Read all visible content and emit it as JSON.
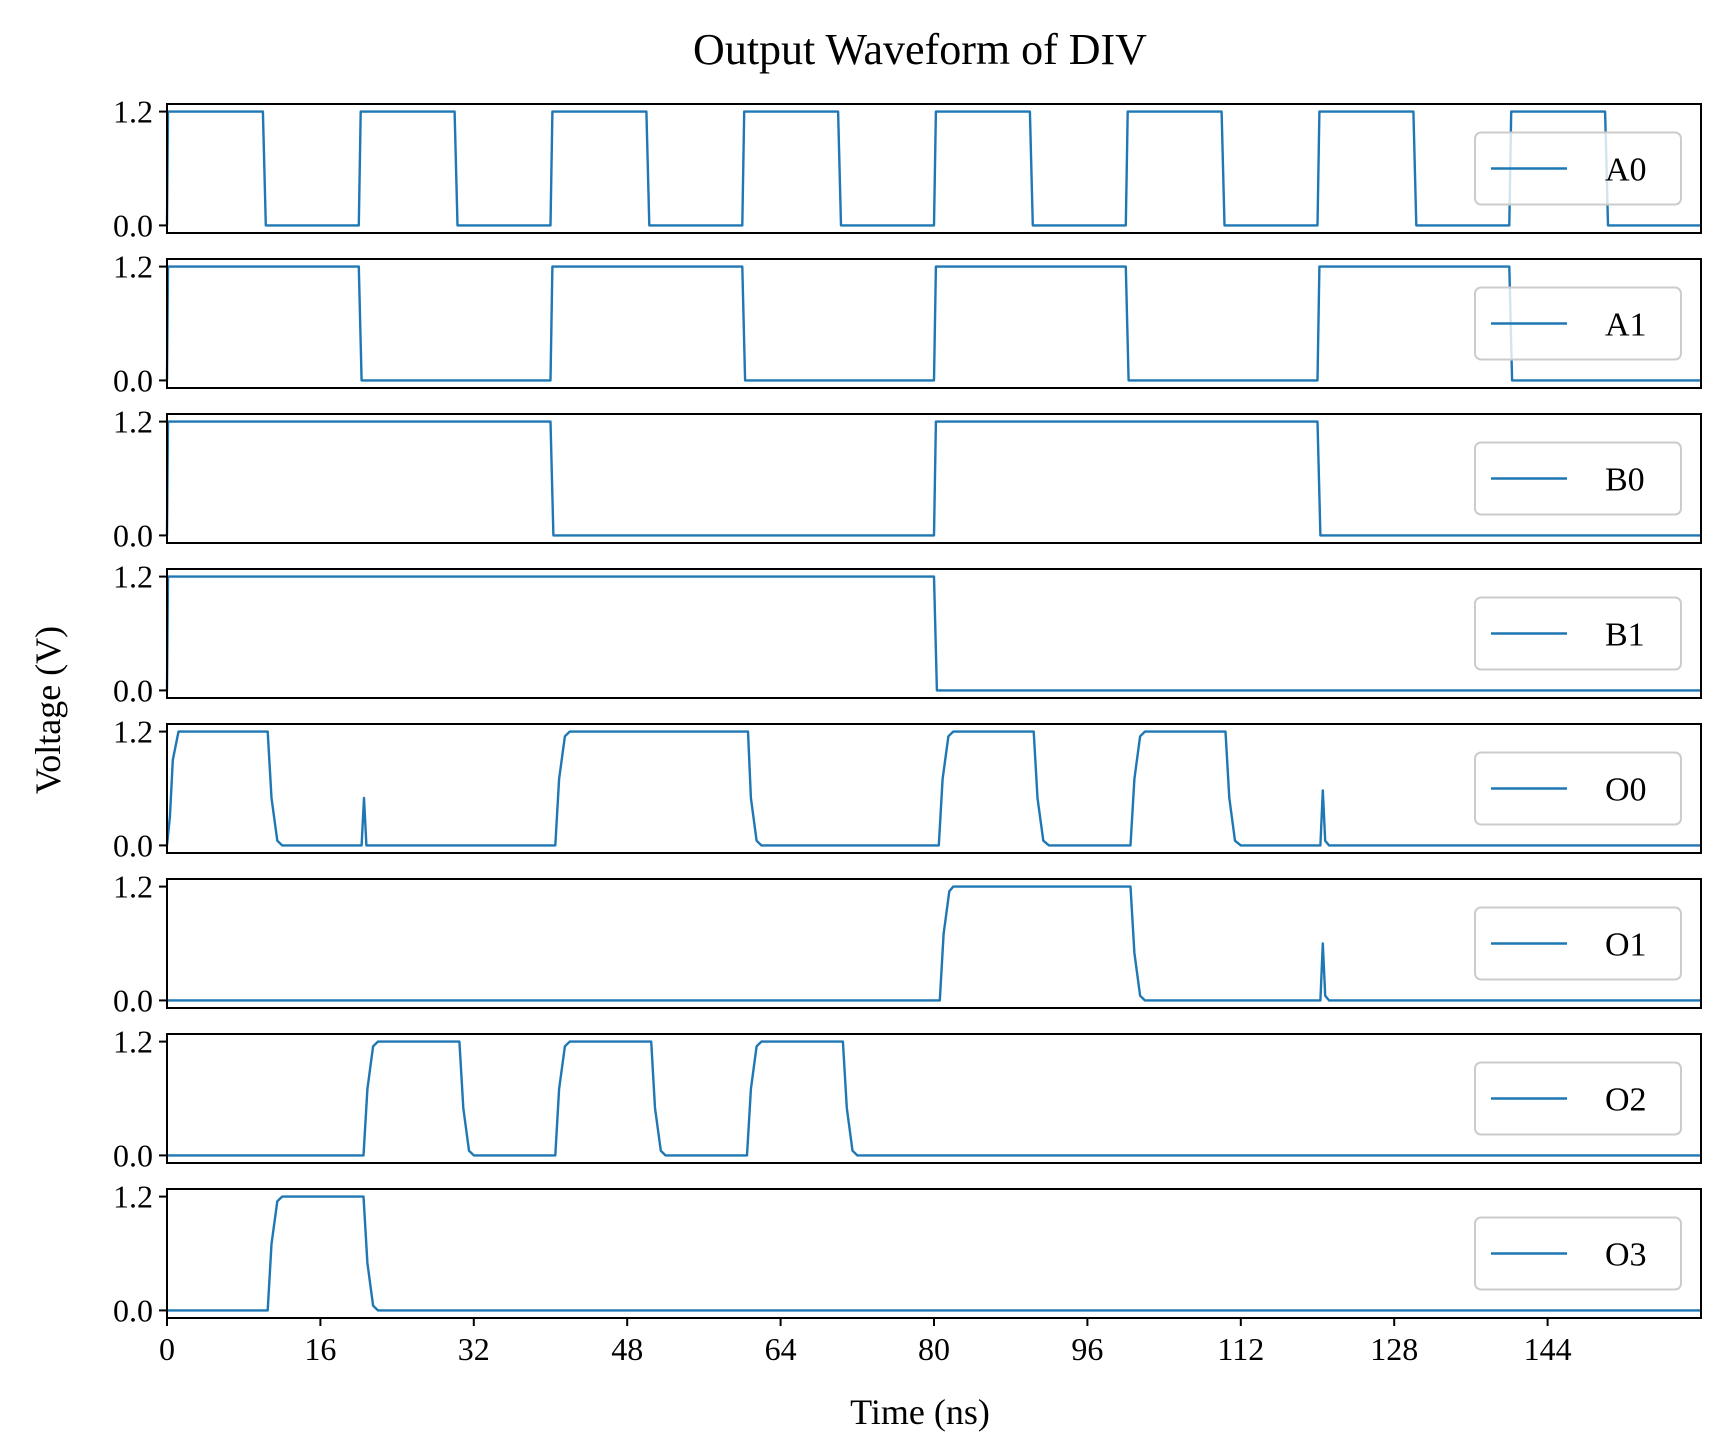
{
  "chart_data": {
    "type": "line",
    "title": "Output Waveform of DIV",
    "xlabel": "Time (ns)",
    "ylabel": "Voltage (V)",
    "xlim": [
      0,
      160
    ],
    "ylim": [
      -0.08,
      1.28
    ],
    "x_ticks": [
      "0",
      "16",
      "32",
      "48",
      "64",
      "80",
      "96",
      "112",
      "128",
      "144"
    ],
    "y_ticks": [
      "1.2",
      "0.0"
    ],
    "grid": false,
    "legend_position": "center-right",
    "line_color": "#1f77b4",
    "series": [
      {
        "name": "A0",
        "points": [
          [
            0,
            0
          ],
          [
            0.1,
            1.2
          ],
          [
            10,
            1.2
          ],
          [
            10.3,
            0
          ],
          [
            20,
            0
          ],
          [
            20.2,
            1.2
          ],
          [
            30,
            1.2
          ],
          [
            30.3,
            0
          ],
          [
            40,
            0
          ],
          [
            40.2,
            1.2
          ],
          [
            50,
            1.2
          ],
          [
            50.3,
            0
          ],
          [
            60,
            0
          ],
          [
            60.2,
            1.2
          ],
          [
            70,
            1.2
          ],
          [
            70.3,
            0
          ],
          [
            80,
            0
          ],
          [
            80.2,
            1.2
          ],
          [
            90,
            1.2
          ],
          [
            90.3,
            0
          ],
          [
            100,
            0
          ],
          [
            100.2,
            1.2
          ],
          [
            110,
            1.2
          ],
          [
            110.3,
            0
          ],
          [
            120,
            0
          ],
          [
            120.2,
            1.2
          ],
          [
            130,
            1.2
          ],
          [
            130.3,
            0
          ],
          [
            140,
            0
          ],
          [
            140.2,
            1.2
          ],
          [
            150,
            1.2
          ],
          [
            150.3,
            0
          ],
          [
            160,
            0
          ]
        ]
      },
      {
        "name": "A1",
        "points": [
          [
            0,
            0
          ],
          [
            0.1,
            1.2
          ],
          [
            20,
            1.2
          ],
          [
            20.3,
            0
          ],
          [
            40,
            0
          ],
          [
            40.2,
            1.2
          ],
          [
            60,
            1.2
          ],
          [
            60.3,
            0
          ],
          [
            80,
            0
          ],
          [
            80.2,
            1.2
          ],
          [
            100,
            1.2
          ],
          [
            100.3,
            0
          ],
          [
            120,
            0
          ],
          [
            120.2,
            1.2
          ],
          [
            140,
            1.2
          ],
          [
            140.3,
            0
          ],
          [
            160,
            0
          ]
        ]
      },
      {
        "name": "B0",
        "points": [
          [
            0,
            0
          ],
          [
            0.1,
            1.2
          ],
          [
            40,
            1.2
          ],
          [
            40.3,
            0
          ],
          [
            80,
            0
          ],
          [
            80.2,
            1.2
          ],
          [
            120,
            1.2
          ],
          [
            120.3,
            0
          ],
          [
            160,
            0
          ]
        ]
      },
      {
        "name": "B1",
        "points": [
          [
            0,
            0
          ],
          [
            0.1,
            1.2
          ],
          [
            80,
            1.2
          ],
          [
            80.3,
            0
          ],
          [
            160,
            0
          ]
        ]
      },
      {
        "name": "O0",
        "points": [
          [
            0,
            0
          ],
          [
            0.3,
            0.3
          ],
          [
            0.6,
            0.9
          ],
          [
            1.2,
            1.2
          ],
          [
            10.5,
            1.2
          ],
          [
            10.9,
            0.5
          ],
          [
            11.5,
            0.05
          ],
          [
            12,
            0
          ],
          [
            20.3,
            0
          ],
          [
            20.55,
            0.5
          ],
          [
            20.8,
            0
          ],
          [
            40.5,
            0
          ],
          [
            40.9,
            0.7
          ],
          [
            41.5,
            1.15
          ],
          [
            42,
            1.2
          ],
          [
            60.6,
            1.2
          ],
          [
            60.9,
            0.5
          ],
          [
            61.5,
            0.05
          ],
          [
            62,
            0
          ],
          [
            80.5,
            0
          ],
          [
            80.9,
            0.7
          ],
          [
            81.5,
            1.15
          ],
          [
            82,
            1.2
          ],
          [
            90.4,
            1.2
          ],
          [
            90.8,
            0.5
          ],
          [
            91.4,
            0.05
          ],
          [
            92,
            0
          ],
          [
            100.5,
            0
          ],
          [
            100.9,
            0.7
          ],
          [
            101.5,
            1.15
          ],
          [
            102,
            1.2
          ],
          [
            110.4,
            1.2
          ],
          [
            110.8,
            0.5
          ],
          [
            111.4,
            0.05
          ],
          [
            112,
            0
          ],
          [
            120.3,
            0
          ],
          [
            120.55,
            0.58
          ],
          [
            120.8,
            0.05
          ],
          [
            121.2,
            0
          ],
          [
            160,
            0
          ]
        ]
      },
      {
        "name": "O1",
        "points": [
          [
            0,
            0
          ],
          [
            80.6,
            0
          ],
          [
            81,
            0.7
          ],
          [
            81.6,
            1.15
          ],
          [
            82,
            1.2
          ],
          [
            100.5,
            1.2
          ],
          [
            100.9,
            0.5
          ],
          [
            101.5,
            0.05
          ],
          [
            102,
            0
          ],
          [
            120.3,
            0
          ],
          [
            120.55,
            0.6
          ],
          [
            120.8,
            0.05
          ],
          [
            121.2,
            0
          ],
          [
            160,
            0
          ]
        ]
      },
      {
        "name": "O2",
        "points": [
          [
            0,
            0
          ],
          [
            20.5,
            0
          ],
          [
            20.9,
            0.7
          ],
          [
            21.5,
            1.15
          ],
          [
            22,
            1.2
          ],
          [
            30.5,
            1.2
          ],
          [
            30.9,
            0.5
          ],
          [
            31.5,
            0.05
          ],
          [
            32,
            0
          ],
          [
            40.5,
            0
          ],
          [
            40.9,
            0.7
          ],
          [
            41.5,
            1.15
          ],
          [
            42,
            1.2
          ],
          [
            50.5,
            1.2
          ],
          [
            50.9,
            0.5
          ],
          [
            51.5,
            0.05
          ],
          [
            52,
            0
          ],
          [
            60.5,
            0
          ],
          [
            60.9,
            0.7
          ],
          [
            61.5,
            1.15
          ],
          [
            62,
            1.2
          ],
          [
            70.5,
            1.2
          ],
          [
            70.9,
            0.5
          ],
          [
            71.5,
            0.05
          ],
          [
            72,
            0
          ],
          [
            160,
            0
          ]
        ]
      },
      {
        "name": "O3",
        "points": [
          [
            0,
            0
          ],
          [
            10.5,
            0
          ],
          [
            10.9,
            0.7
          ],
          [
            11.5,
            1.15
          ],
          [
            12,
            1.2
          ],
          [
            20.5,
            1.2
          ],
          [
            20.9,
            0.5
          ],
          [
            21.5,
            0.05
          ],
          [
            22,
            0
          ],
          [
            160,
            0
          ]
        ]
      }
    ]
  }
}
